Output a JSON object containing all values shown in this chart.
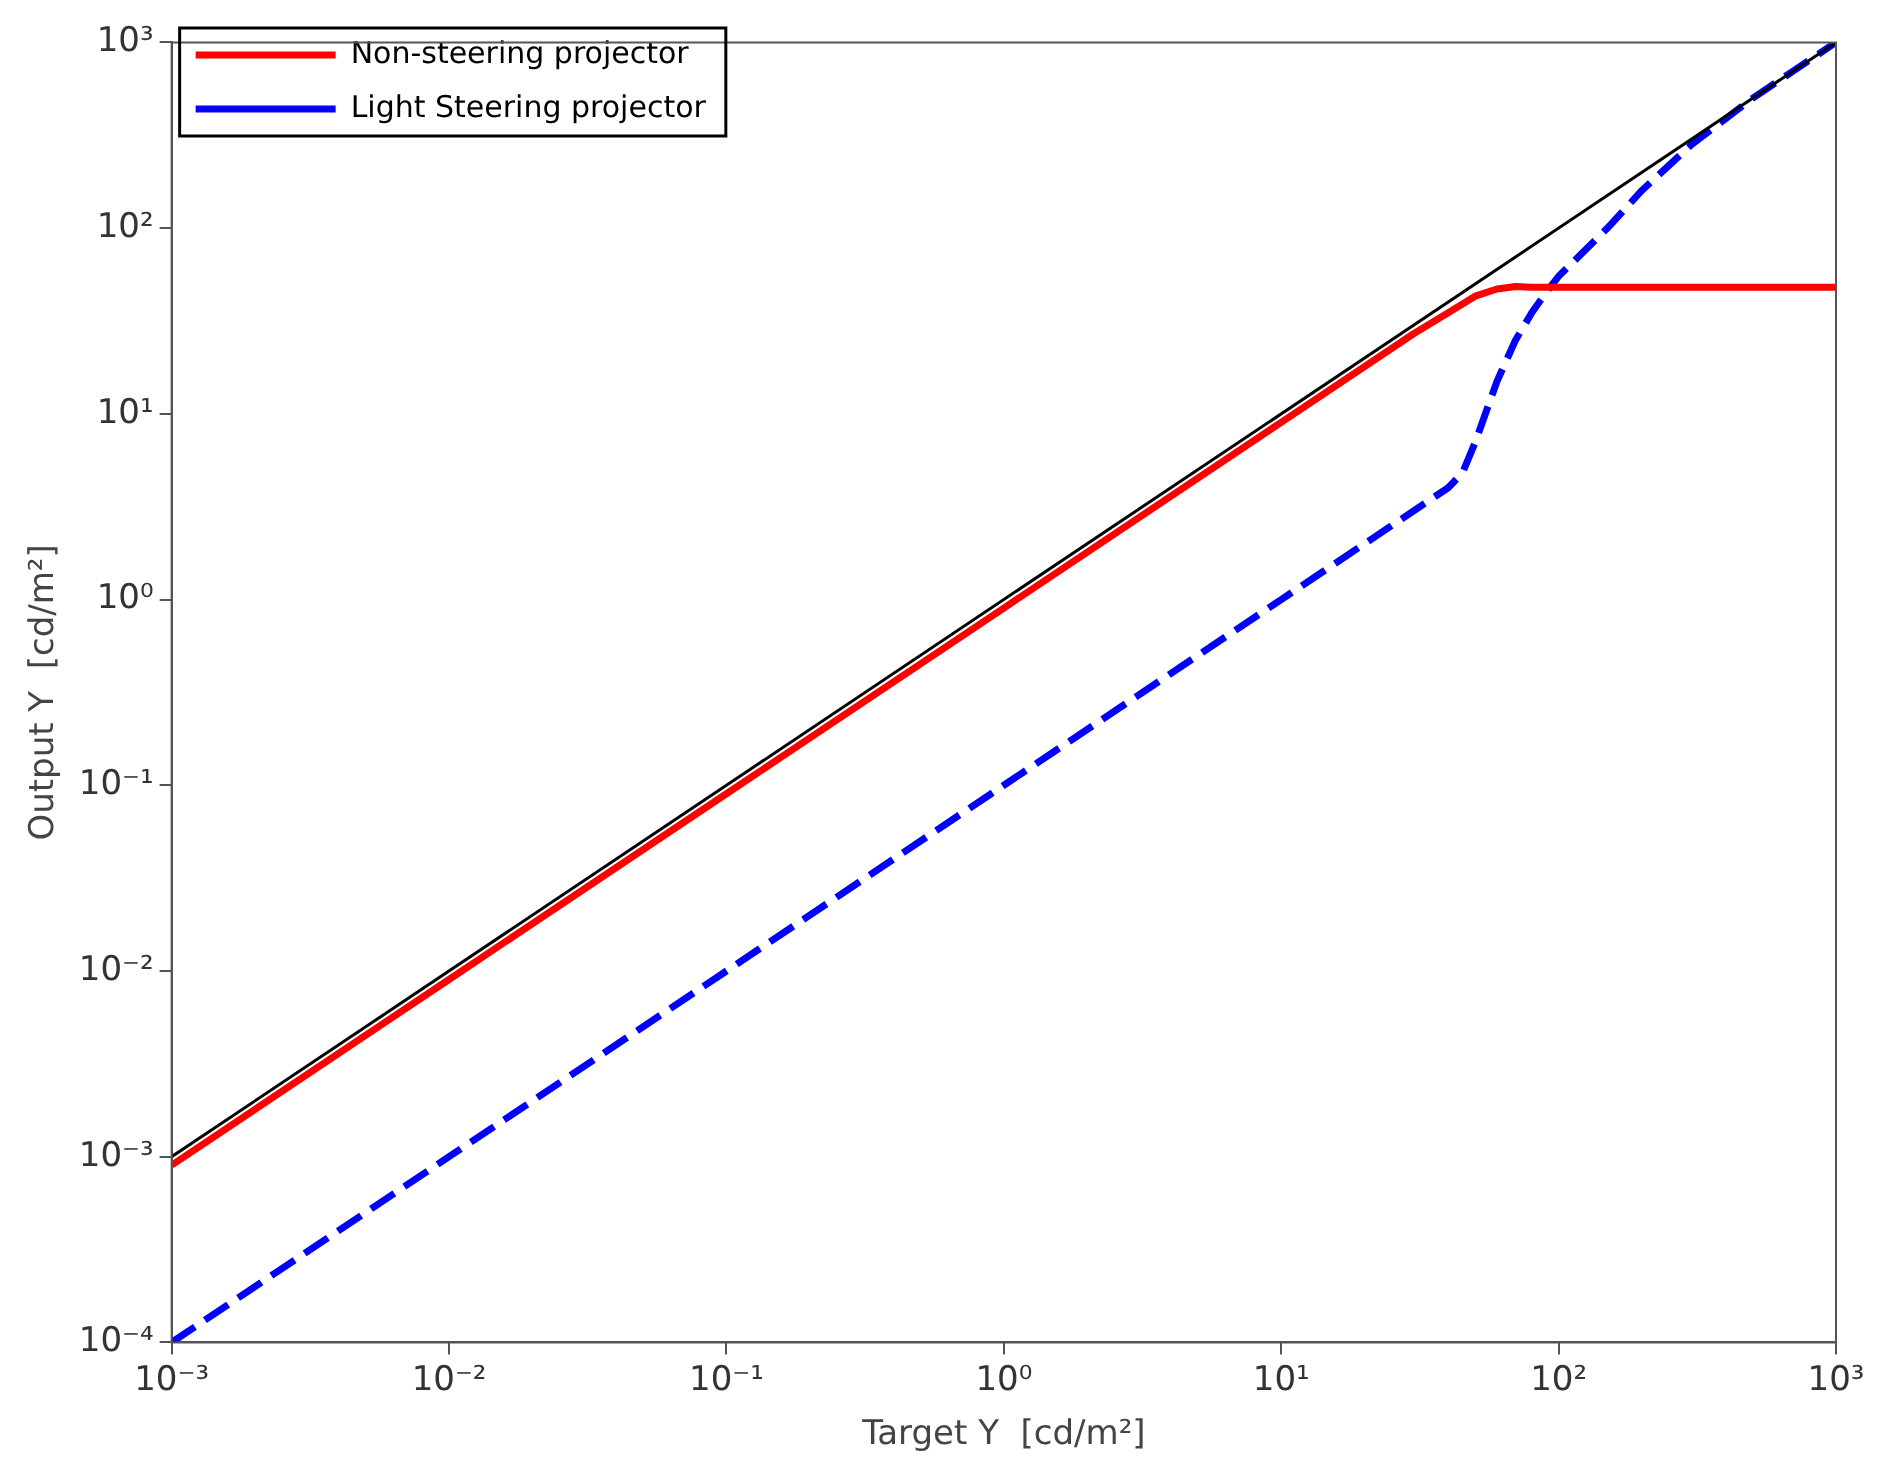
{
  "chart_data": {
    "type": "line",
    "xlabel": "Target Y  [cd/m²]",
    "ylabel": "Output Y  [cd/m²]",
    "log": "xy",
    "grid": false,
    "legend": "top left",
    "marker": "none",
    "xlim": [
      0.001,
      1000
    ],
    "ylim": [
      0.0001,
      1000
    ],
    "xticks": [
      {
        "value": 0.001,
        "label": "10⁻³"
      },
      {
        "value": 0.01,
        "label": "10⁻²"
      },
      {
        "value": 0.1,
        "label": "10⁻¹"
      },
      {
        "value": 1,
        "label": "10⁰"
      },
      {
        "value": 10,
        "label": "10¹"
      },
      {
        "value": 100,
        "label": "10²"
      },
      {
        "value": 1000,
        "label": "10³"
      }
    ],
    "yticks": [
      {
        "value": 0.0001,
        "label": "10⁻⁴"
      },
      {
        "value": 0.001,
        "label": "10⁻³"
      },
      {
        "value": 0.01,
        "label": "10⁻²"
      },
      {
        "value": 0.1,
        "label": "10⁻¹"
      },
      {
        "value": 1,
        "label": "10⁰"
      },
      {
        "value": 10,
        "label": "10¹"
      },
      {
        "value": 100,
        "label": "10²"
      },
      {
        "value": 1000,
        "label": "10³"
      }
    ],
    "series": [
      {
        "color": "#000000",
        "line_style": "solid",
        "x": [
          0.001,
          1000
        ],
        "values": [
          0.001,
          1000
        ]
      },
      {
        "name": "Non-steering projector",
        "color": "#ff0000",
        "line_style": "solid",
        "x": [
          0.001,
          0.01,
          0.1,
          1,
          10,
          30,
          40,
          50,
          60,
          70,
          80,
          100,
          1000
        ],
        "values": [
          0.0009,
          0.009,
          0.09,
          0.9,
          9,
          27,
          35,
          43,
          47,
          48.5,
          48,
          48,
          48
        ]
      },
      {
        "name": "Light Steering projector",
        "color": "#0000ff",
        "line_style": "dashed",
        "x": [
          0.001,
          0.01,
          0.1,
          1,
          10,
          40,
          45,
          50,
          60,
          70,
          80,
          90,
          100,
          150,
          200,
          300,
          500,
          700,
          1000
        ],
        "values": [
          0.0001,
          0.001,
          0.01,
          0.1,
          1,
          4,
          4.8,
          7,
          15,
          25,
          35,
          45,
          55,
          100,
          160,
          280,
          500,
          700,
          1000
        ]
      }
    ]
  }
}
